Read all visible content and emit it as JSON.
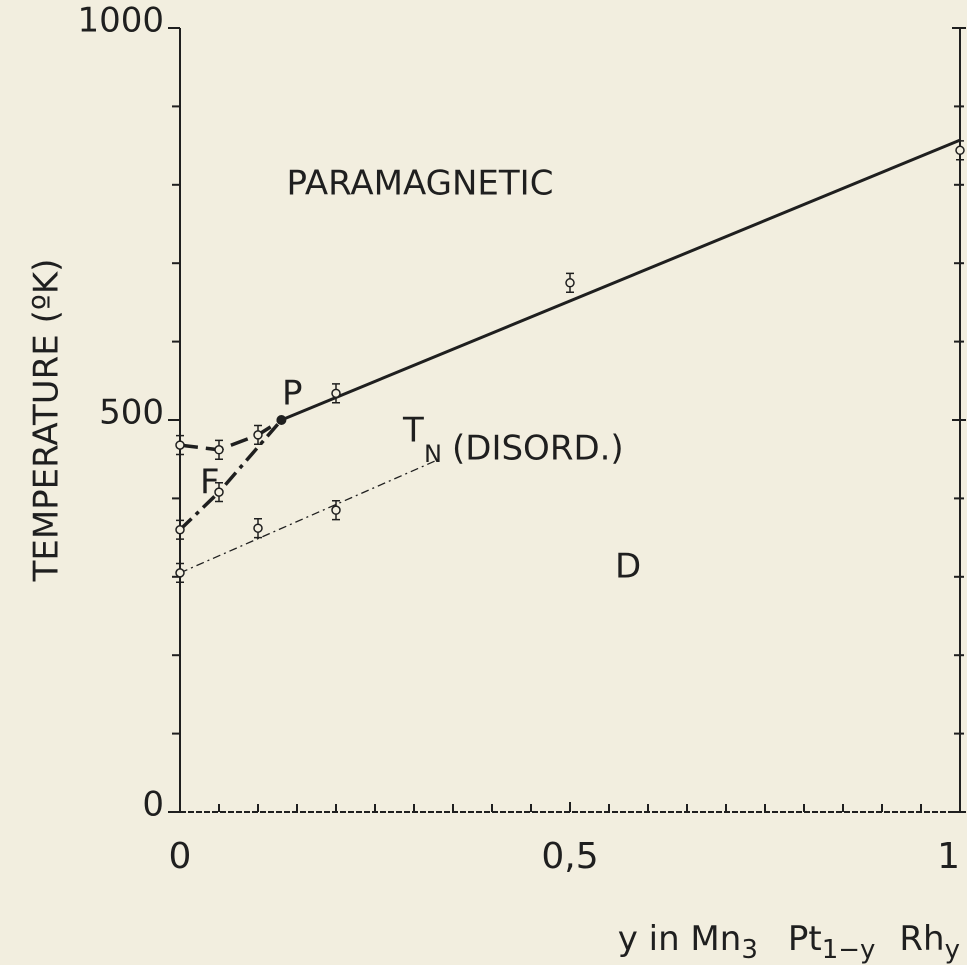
{
  "chart_data": {
    "type": "line",
    "y_label": "TEMPERATURE  (ºK)",
    "x_label_parts": [
      "y in Mn",
      "3",
      "Pt",
      "1−y",
      "Rh",
      "y"
    ],
    "xlim": [
      0,
      1
    ],
    "ylim": [
      0,
      1000
    ],
    "xticks": [
      0,
      {
        "value": 0.5,
        "label": "0,5"
      },
      1
    ],
    "yticks": [
      0,
      500,
      1000
    ],
    "x_minor_ticks": [
      0.05,
      0.1,
      0.15,
      0.2,
      0.25,
      0.3,
      0.35,
      0.4,
      0.45,
      0.55,
      0.6,
      0.65,
      0.7,
      0.75,
      0.8,
      0.85,
      0.9,
      0.95
    ],
    "y_minor_ticks": [
      100,
      200,
      300,
      400,
      600,
      700,
      800,
      900
    ],
    "color": "#1f1f1f",
    "series": [
      {
        "style": "solid",
        "x": [
          0.13,
          1.0
        ],
        "values": [
          500,
          857
        ]
      },
      {
        "style": "dashed",
        "x": [
          0,
          0.05,
          0.1,
          0.13
        ],
        "values": [
          468,
          462,
          481,
          500
        ]
      },
      {
        "style": "dashdot",
        "x": [
          0,
          0.05,
          0.13
        ],
        "values": [
          360,
          408,
          500
        ]
      },
      {
        "style": "thin",
        "x": [
          0,
          0.33
        ],
        "values": [
          305,
          449
        ]
      }
    ],
    "points": {
      "x": [
        0,
        0,
        0,
        0.05,
        0.05,
        0.1,
        0.1,
        0.2,
        0.2,
        0.5,
        1.0
      ],
      "values": [
        468,
        360,
        305,
        462,
        408,
        481,
        362,
        534,
        385,
        675,
        844
      ],
      "errors": [
        12,
        12,
        12,
        12,
        12,
        12,
        12,
        12,
        12,
        12,
        12
      ]
    },
    "p_point": {
      "x": 0.13,
      "value": 500
    },
    "annotations": [
      "PARAMAGNETIC",
      "P",
      "F",
      "T",
      "N",
      "(DISORD.)",
      "D"
    ]
  }
}
